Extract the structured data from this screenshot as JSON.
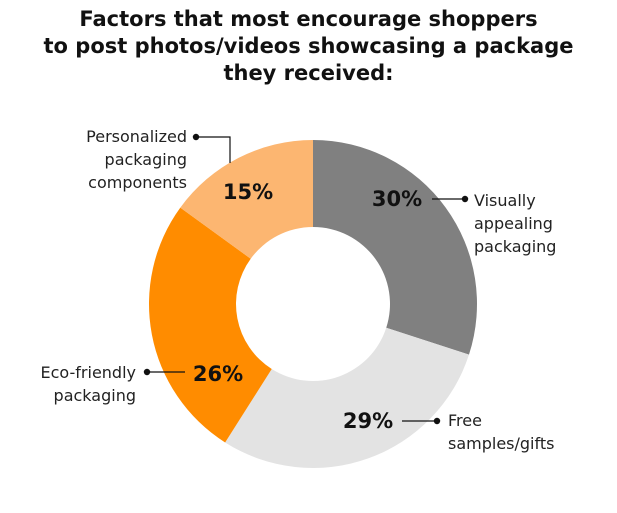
{
  "title": {
    "line1": "Factors that most encourage shoppers",
    "line2": "to post photos/videos showcasing a package",
    "line3": "they received:"
  },
  "chart_data": {
    "type": "pie",
    "donut": true,
    "start": "top, clockwise",
    "slices": [
      {
        "label": [
          "Visually",
          "appealing",
          "packaging"
        ],
        "value": 30,
        "display": "30%",
        "color": "#808080"
      },
      {
        "label": [
          "Free",
          "samples/gifts"
        ],
        "value": 29,
        "display": "29%",
        "color": "#e3e3e3"
      },
      {
        "label": [
          "Eco-friendly",
          "packaging"
        ],
        "value": 26,
        "display": "26%",
        "color": "#ff8c00"
      },
      {
        "label": [
          "Personalized",
          "packaging",
          "components"
        ],
        "value": 15,
        "display": "15%",
        "color": "#fcb671"
      }
    ]
  }
}
